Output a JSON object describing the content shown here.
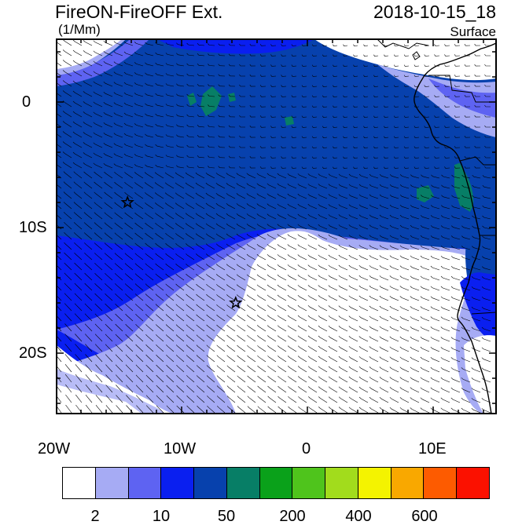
{
  "title_left": "FireON-FireOFF Ext.",
  "title_right": "2018-10-15_18",
  "units": "(1/Mm)",
  "level": "Surface",
  "lat_labels": [
    "0",
    "10S",
    "20S"
  ],
  "lon_labels": [
    "20W",
    "10W",
    "0",
    "10E"
  ],
  "colorbar": {
    "colors": [
      "#ffffff",
      "#a6abf4",
      "#5e63f2",
      "#0a1ff0",
      "#0741ad",
      "#077e66",
      "#0aa11a",
      "#4fc41c",
      "#a2dc1c",
      "#f4f300",
      "#f9a800",
      "#fd5b00",
      "#fb1100"
    ],
    "labels": [
      "2",
      "10",
      "50",
      "200",
      "400",
      "600"
    ]
  },
  "markers": [
    {
      "name": "star-marker",
      "lon": -14.3,
      "lat": -8.0
    },
    {
      "name": "star-marker",
      "lon": -5.7,
      "lat": -16.0
    }
  ],
  "map_colors": {
    "deep": "#0741ad",
    "medium": "#0a1ff0",
    "light": "#5e63f2",
    "pale": "#a6abf4",
    "clean": "#ffffff",
    "green": "#077e66"
  }
}
